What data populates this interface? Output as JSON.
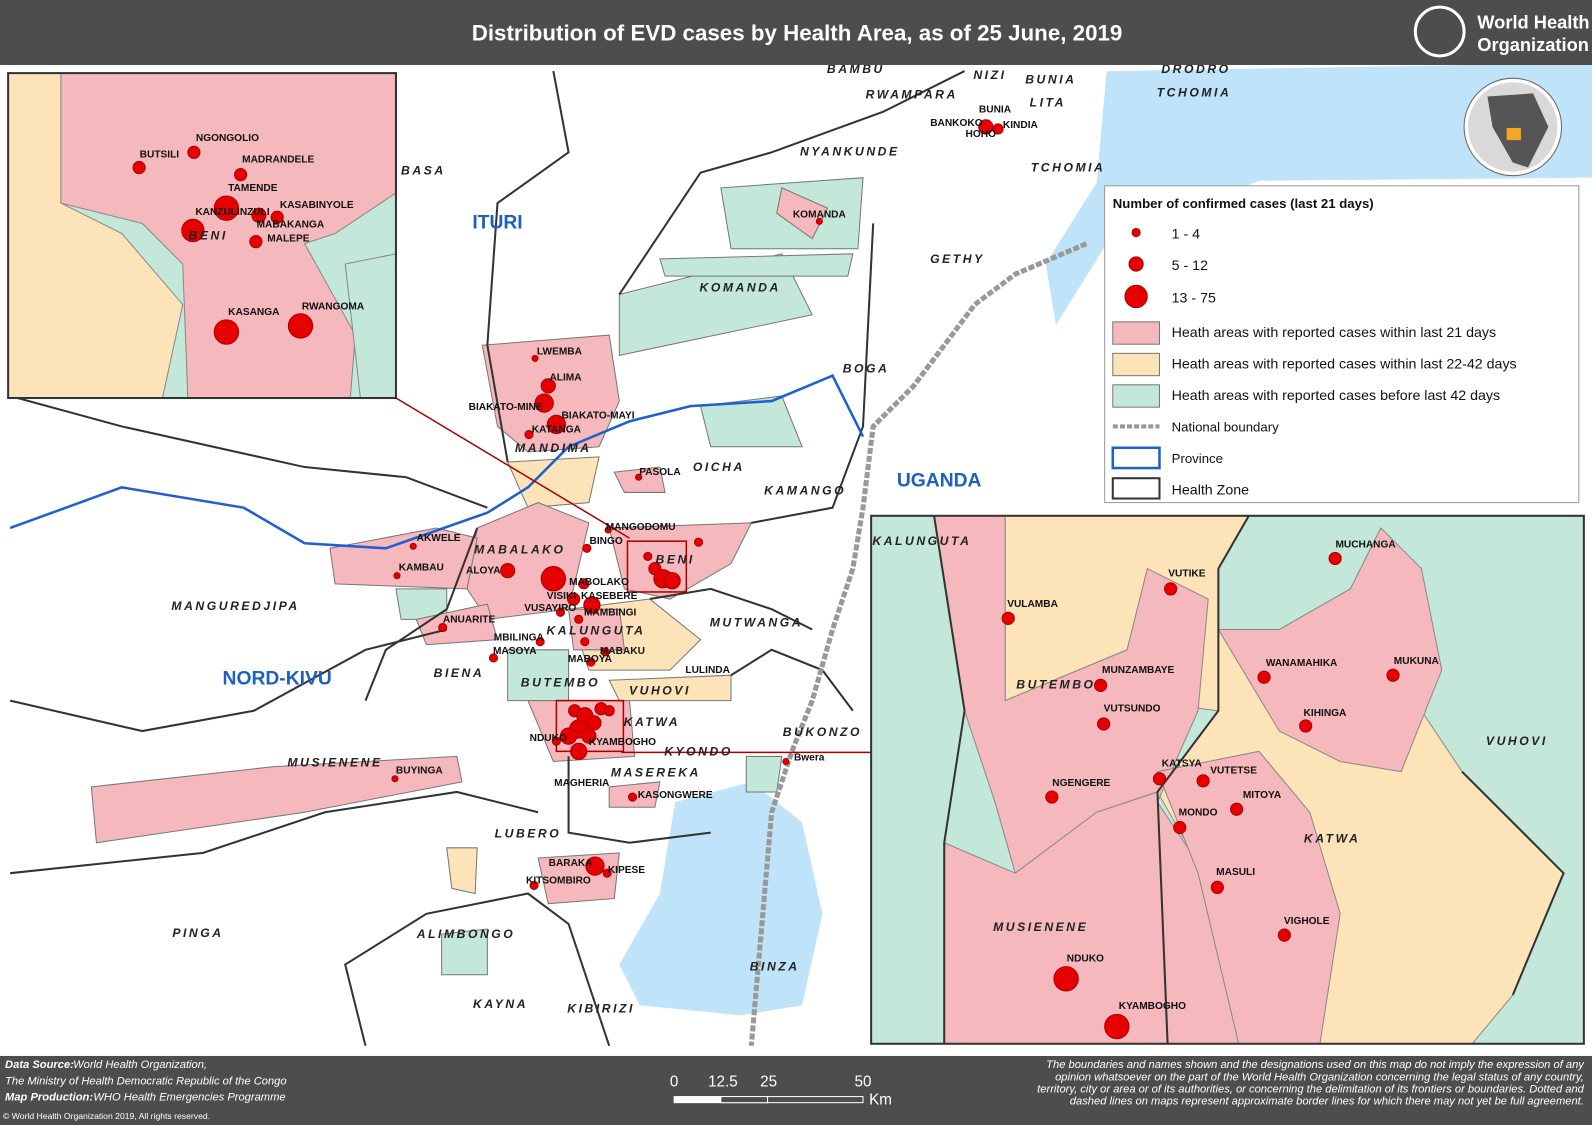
{
  "header": {
    "title": "Distribution of EVD cases by Health Area, as of 25 June, 2019",
    "logo_line1": "World Health",
    "logo_line2": "Organization"
  },
  "main_map": {
    "region_labels": [
      "BAMBU",
      "NIZI",
      "BUNIA",
      "DRODRO",
      "RWAMPARA",
      "LITA",
      "TCHOMIA",
      "NYANKUNDE",
      "TCHOMIA",
      "BASA",
      "GETHY",
      "KOMANDA",
      "BOGA",
      "MANDIMA",
      "OICHA",
      "KAMANGO",
      "MABALAKO",
      "MANGUREDJIPA",
      "MUTWANGA",
      "KALUNGUTA",
      "BIENA",
      "BUTEMBO",
      "VUHOVI",
      "KATWA",
      "KYONDO",
      "BUKONZO",
      "MUSIENENE",
      "MASEREKA",
      "LUBERO",
      "PINGA",
      "ALIMBONGO",
      "BINZA",
      "KAYNA",
      "KIBIRIZI",
      "BENI",
      "KALUNGUTA"
    ],
    "emphasis_labels": [
      "ITURI",
      "NORD-KIVU",
      "UGANDA"
    ],
    "place_labels": [
      "BUNIA",
      "BANKOKO",
      "KINDIA",
      "HOHO",
      "KOMANDA",
      "LWEMBA",
      "ALIMA",
      "BIAKATO-MINE",
      "BIAKATO-MAYI",
      "KATANGA",
      "PASOLA",
      "MANGODOMU",
      "BINGO",
      "AKWELE",
      "KAMBAU",
      "ALOYA",
      "MABOLAKO",
      "VISIKI",
      "KASEBERE",
      "VUSAYIRO",
      "MAMBINGI",
      "ANUARITE",
      "MBILINGA",
      "MASOYA",
      "MABAKU",
      "MABOYA",
      "LULINDA",
      "NDUKO",
      "KYAMBOGHO",
      "Bwera",
      "BUYINGA",
      "MAGHERIA",
      "KASONGWERE",
      "BARAKA",
      "KIPESE",
      "KITSOMBIRO"
    ]
  },
  "inset_beni": {
    "zone_labels": [
      "BENI"
    ],
    "place_labels": [
      "NGONGOLIO",
      "BUTSILI",
      "MADRANDELE",
      "TAMENDE",
      "KASABINYOLE",
      "KANZULINZULI",
      "MABAKANGA",
      "MALEPE",
      "KASANGA",
      "RWANGOMA"
    ]
  },
  "inset_butembo": {
    "zone_labels": [
      "BUTEMBO",
      "VUHOVI",
      "KATWA",
      "MUSIENENE"
    ],
    "place_labels": [
      "VUTIKE",
      "MUCHANGA",
      "VULAMBA",
      "MUNZAMBAYE",
      "WANAMAHIKA",
      "MUKUNA",
      "VUTSUNDO",
      "KIHINGA",
      "KATSYA",
      "VUTETSE",
      "NGENGERE",
      "MITOYA",
      "MONDO",
      "MASULI",
      "VIGHOLE",
      "NDUKO",
      "KYAMBOGHO"
    ]
  },
  "legend": {
    "title": "Number of confirmed cases (last 21 days)",
    "case_classes": [
      "1 - 4",
      "5 - 12",
      "13 - 75"
    ],
    "area_classes": [
      "Heath areas with reported cases within last 21 days",
      "Heath areas with reported cases within last 22-42 days",
      "Heath areas with reported cases before last 42 days"
    ],
    "boundary_classes": [
      "National boundary",
      "Province",
      "Health Zone"
    ]
  },
  "scale_bar": {
    "ticks": [
      "0",
      "12.5",
      "25",
      "50"
    ],
    "unit": "Km"
  },
  "footer": {
    "source_label": "Data Source:",
    "source_1": "World Health Organization,",
    "source_2": "The Ministry of Health Democratic Republic of the Congo",
    "production_label": "Map Production:",
    "production": "WHO Health Emergencies Programme",
    "copyright": "© World Health Organization 2019, All rights reserved.",
    "disclaimer": [
      "The boundaries and names shown and the designations used on this map do not imply the expression of any",
      "opinion whatsoever on the part of the World Health Organization concerning the legal status of any country,",
      "territory, city or area or of its authorities, or concerning the delimitation of its frontiers or boundaries. Dotted and",
      "dashed lines on maps represent approximate border lines for which there may not yet be full agreement."
    ]
  }
}
